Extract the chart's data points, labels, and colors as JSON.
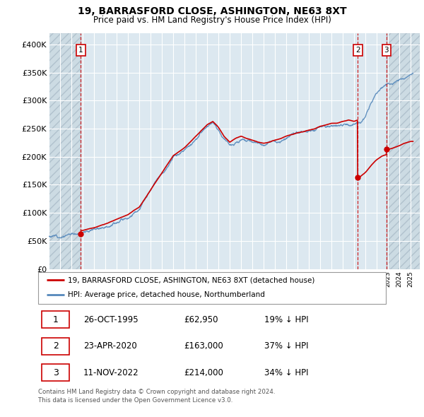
{
  "title": "19, BARRASFORD CLOSE, ASHINGTON, NE63 8XT",
  "subtitle": "Price paid vs. HM Land Registry's House Price Index (HPI)",
  "ylim": [
    0,
    420000
  ],
  "yticks": [
    0,
    50000,
    100000,
    150000,
    200000,
    250000,
    300000,
    350000,
    400000
  ],
  "ytick_labels": [
    "£0",
    "£50K",
    "£100K",
    "£150K",
    "£200K",
    "£250K",
    "£300K",
    "£350K",
    "£400K"
  ],
  "xlim_start": 1993.0,
  "xlim_end": 2025.8,
  "sales": [
    {
      "year": 1995.82,
      "price": 62950,
      "label": "1",
      "date": "26-OCT-1995",
      "hpi_pct": "19% ↓ HPI"
    },
    {
      "year": 2020.31,
      "price": 163000,
      "label": "2",
      "date": "23-APR-2020",
      "hpi_pct": "37% ↓ HPI"
    },
    {
      "year": 2022.86,
      "price": 214000,
      "label": "3",
      "date": "11-NOV-2022",
      "hpi_pct": "34% ↓ HPI"
    }
  ],
  "legend_entry1": "19, BARRASFORD CLOSE, ASHINGTON, NE63 8XT (detached house)",
  "legend_entry2": "HPI: Average price, detached house, Northumberland",
  "footer1": "Contains HM Land Registry data © Crown copyright and database right 2024.",
  "footer2": "This data is licensed under the Open Government Licence v3.0.",
  "red_color": "#cc0000",
  "blue_color": "#5588bb",
  "bg_color": "#dce8f0",
  "table_rows": [
    [
      "1",
      "26-OCT-1995",
      "£62,950",
      "19% ↓ HPI"
    ],
    [
      "2",
      "23-APR-2020",
      "£163,000",
      "37% ↓ HPI"
    ],
    [
      "3",
      "11-NOV-2022",
      "£214,000",
      "34% ↓ HPI"
    ]
  ],
  "hpi_anchors": [
    [
      1993.0,
      58000
    ],
    [
      1994.0,
      60000
    ],
    [
      1995.0,
      63000
    ],
    [
      1996.0,
      67000
    ],
    [
      1997.0,
      72000
    ],
    [
      1998.0,
      79000
    ],
    [
      1999.0,
      87000
    ],
    [
      2000.0,
      95000
    ],
    [
      2001.0,
      108000
    ],
    [
      2002.0,
      138000
    ],
    [
      2003.0,
      168000
    ],
    [
      2004.0,
      198000
    ],
    [
      2005.0,
      212000
    ],
    [
      2006.0,
      232000
    ],
    [
      2007.0,
      252000
    ],
    [
      2007.5,
      258000
    ],
    [
      2008.0,
      248000
    ],
    [
      2008.5,
      232000
    ],
    [
      2009.0,
      222000
    ],
    [
      2009.5,
      228000
    ],
    [
      2010.0,
      232000
    ],
    [
      2010.5,
      228000
    ],
    [
      2011.0,
      225000
    ],
    [
      2011.5,
      222000
    ],
    [
      2012.0,
      220000
    ],
    [
      2012.5,
      222000
    ],
    [
      2013.0,
      225000
    ],
    [
      2013.5,
      228000
    ],
    [
      2014.0,
      232000
    ],
    [
      2014.5,
      235000
    ],
    [
      2015.0,
      238000
    ],
    [
      2015.5,
      240000
    ],
    [
      2016.0,
      243000
    ],
    [
      2016.5,
      245000
    ],
    [
      2017.0,
      250000
    ],
    [
      2017.5,
      252000
    ],
    [
      2018.0,
      255000
    ],
    [
      2018.5,
      255000
    ],
    [
      2019.0,
      258000
    ],
    [
      2019.5,
      260000
    ],
    [
      2020.0,
      258000
    ],
    [
      2020.5,
      262000
    ],
    [
      2021.0,
      275000
    ],
    [
      2021.5,
      295000
    ],
    [
      2022.0,
      312000
    ],
    [
      2022.5,
      322000
    ],
    [
      2023.0,
      328000
    ],
    [
      2023.5,
      332000
    ],
    [
      2024.0,
      338000
    ],
    [
      2024.5,
      345000
    ],
    [
      2025.0,
      350000
    ]
  ],
  "red_anchors_s1_ratio": 0.973,
  "red_anchors_s2_ratio": 0.611,
  "red_anchors_s3_ratio": 0.663
}
